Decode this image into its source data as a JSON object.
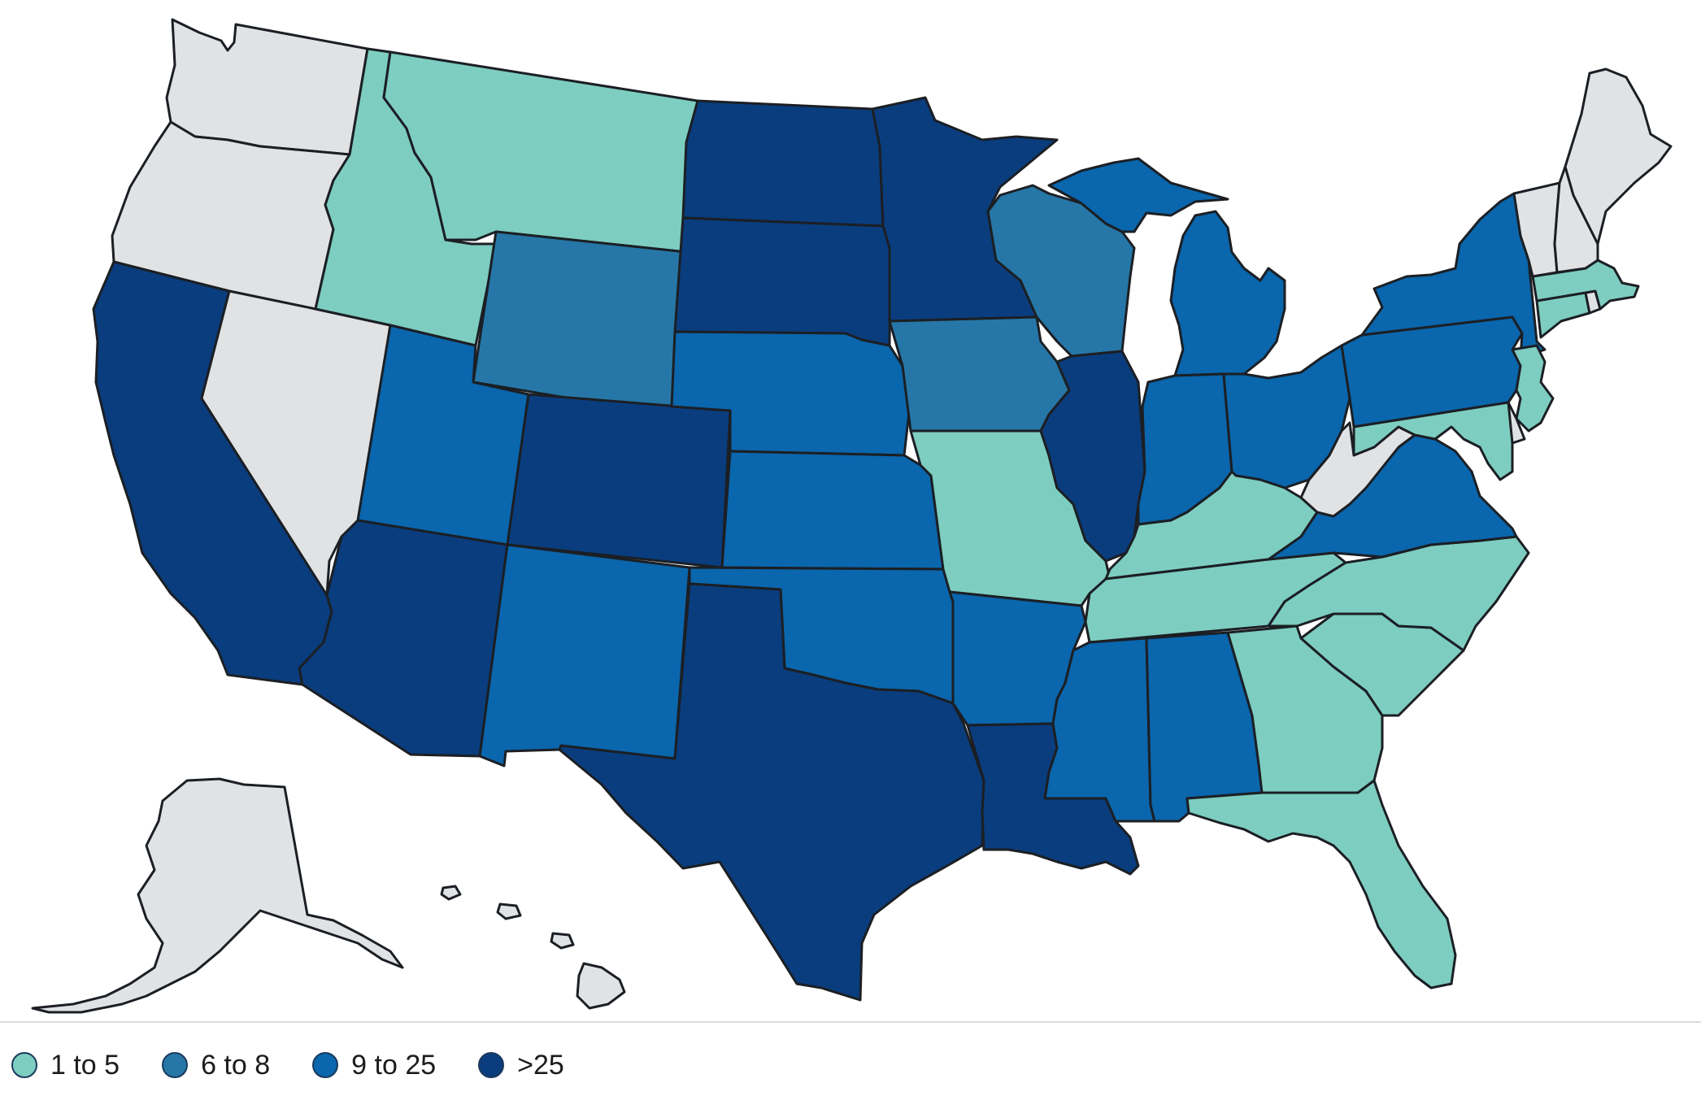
{
  "colors": {
    "no_data": "#e1e2e4",
    "bin_1_5": "#7ecdc1",
    "bin_6_8": "#2677a7",
    "bin_9_25": "#0a66ad",
    "bin_gt25": "#0a3d7e",
    "border": "#1b1f24"
  },
  "legend": {
    "items": [
      {
        "label": "1 to 5",
        "color": "#7ecdc1"
      },
      {
        "label": "6 to 8",
        "color": "#2677a7"
      },
      {
        "label": "9 to 25",
        "color": "#0a66ad"
      },
      {
        "label": ">25",
        "color": "#0a3d7e"
      }
    ]
  },
  "states": {
    "WA": "none",
    "OR": "none",
    "CA": "gt25",
    "NV": "none",
    "ID": "1-5",
    "MT": "1-5",
    "WY": "6-8",
    "UT": "9-25",
    "AZ": "gt25",
    "CO": "gt25",
    "NM": "9-25",
    "ND": "gt25",
    "SD": "gt25",
    "NE": "9-25",
    "KS": "9-25",
    "OK": "9-25",
    "TX": "gt25",
    "MN": "gt25",
    "IA": "6-8",
    "MO": "1-5",
    "AR": "9-25",
    "LA": "gt25",
    "WI": "6-8",
    "IL": "gt25",
    "MI": "9-25",
    "IN": "9-25",
    "OH": "9-25",
    "KY": "1-5",
    "TN": "1-5",
    "MS": "9-25",
    "AL": "9-25",
    "GA": "1-5",
    "FL": "1-5",
    "SC": "1-5",
    "NC": "1-5",
    "VA": "9-25",
    "WV": "none",
    "PA": "9-25",
    "NY": "9-25",
    "NJ": "1-5",
    "DE": "none",
    "MD": "1-5",
    "CT": "1-5",
    "RI": "none",
    "MA": "1-5",
    "VT": "none",
    "NH": "none",
    "ME": "none",
    "AK": "none",
    "HI": "none"
  }
}
